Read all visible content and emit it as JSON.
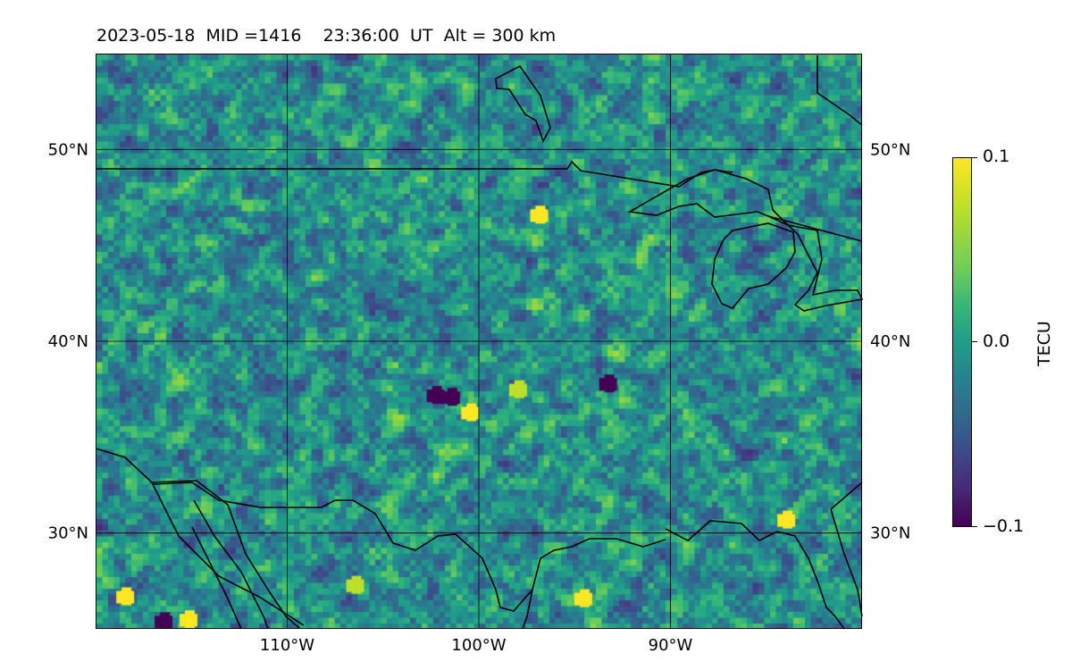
{
  "chart_data": {
    "type": "heatmap",
    "title": "2023-05-18  MID =1416    23:36:00  UT  Alt = 300 km",
    "lon_range": [
      -120,
      -80
    ],
    "lat_range": [
      25,
      55
    ],
    "x_ticks": [
      {
        "lon": -110,
        "label": "110°W"
      },
      {
        "lon": -100,
        "label": "100°W"
      },
      {
        "lon": -90,
        "label": "90°W"
      }
    ],
    "y_ticks": [
      {
        "lat": 30,
        "label": "30°N"
      },
      {
        "lat": 40,
        "label": "40°N"
      },
      {
        "lat": 50,
        "label": "50°N"
      }
    ],
    "grid": true,
    "colormap": "viridis",
    "colorbar": {
      "label": "TECU",
      "vmin": -0.1,
      "vmax": 0.1,
      "ticks": [
        {
          "value": 0.1,
          "label": "0.1"
        },
        {
          "value": 0.0,
          "label": "0.0"
        },
        {
          "value": -0.1,
          "label": "−0.1"
        }
      ]
    },
    "background_value": 0.0,
    "notable_anomalies": [
      {
        "lon": -118.5,
        "lat": 26.7,
        "value": 0.1
      },
      {
        "lon": -116.5,
        "lat": 25.4,
        "value": -0.1
      },
      {
        "lon": -115.2,
        "lat": 25.5,
        "value": 0.1
      },
      {
        "lon": -101.5,
        "lat": 37.1,
        "value": -0.1
      },
      {
        "lon": -100.5,
        "lat": 36.3,
        "value": 0.1
      },
      {
        "lon": -102.3,
        "lat": 37.2,
        "value": -0.1
      },
      {
        "lon": -96.9,
        "lat": 46.6,
        "value": 0.1
      },
      {
        "lon": -93.3,
        "lat": 37.8,
        "value": -0.1
      },
      {
        "lon": -94.6,
        "lat": 26.6,
        "value": 0.1
      },
      {
        "lon": -84.0,
        "lat": 30.7,
        "value": 0.1
      },
      {
        "lon": -98.0,
        "lat": 37.5,
        "value": 0.08
      },
      {
        "lon": -106.5,
        "lat": 27.3,
        "value": 0.08
      }
    ]
  }
}
